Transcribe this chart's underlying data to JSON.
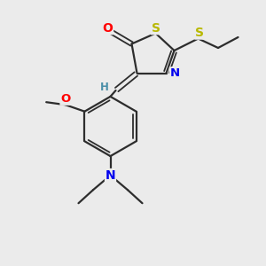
{
  "background_color": "#ebebeb",
  "bond_color": "#2d2d2d",
  "atom_colors": {
    "O": "#ff0000",
    "S": "#b8b800",
    "N": "#0000ee",
    "H": "#4a8fa8"
  },
  "figsize": [
    3.0,
    3.0
  ],
  "dpi": 100
}
